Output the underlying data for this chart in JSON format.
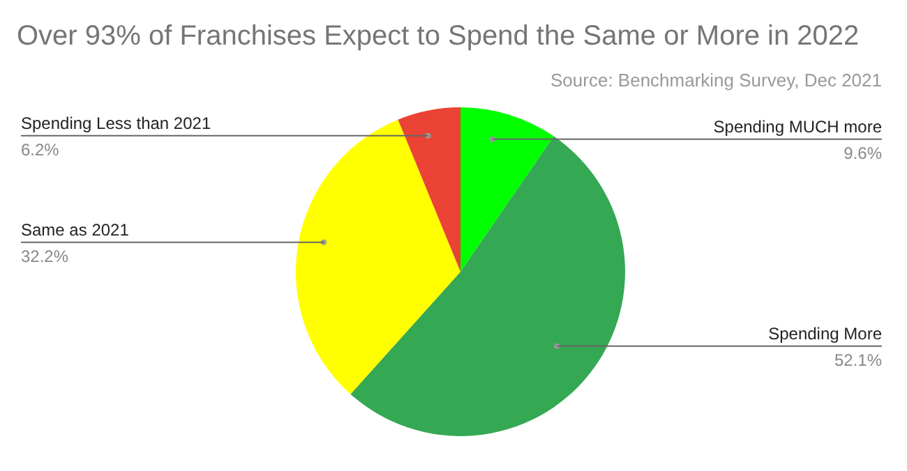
{
  "chart_data": {
    "type": "pie",
    "title": "Over 93% of Franchises Expect to Spend the Same or More in 2022",
    "subtitle": "Source: Benchmarking Survey, Dec 2021",
    "categories": [
      "Spending MUCH more",
      "Spending More",
      "Same as 2021",
      "Spending Less than 2021"
    ],
    "values": [
      9.6,
      52.1,
      32.2,
      6.2
    ],
    "colors": [
      "#00ff00",
      "#34a853",
      "#ffff00",
      "#ea4335"
    ],
    "value_labels": [
      "9.6%",
      "52.1%",
      "32.2%",
      "6.2%"
    ],
    "legend": false
  }
}
